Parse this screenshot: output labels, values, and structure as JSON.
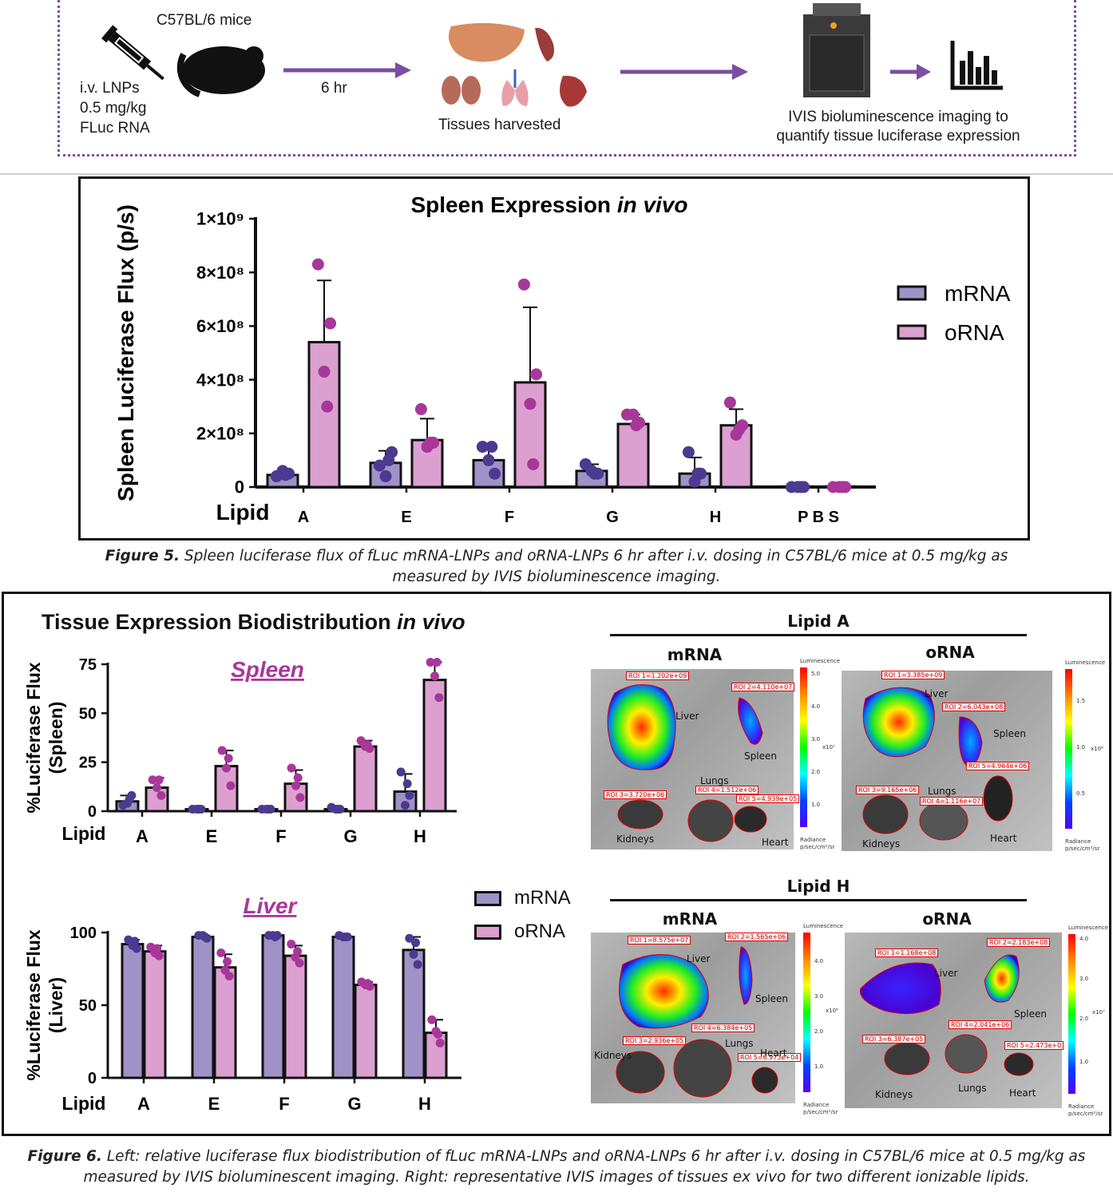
{
  "workflow": {
    "mouse_label": "C57BL/6 mice",
    "dose_lines": [
      "i.v. LNPs",
      "0.5 mg/kg",
      "FLuc RNA"
    ],
    "time_label": "6 hr",
    "harvest_label": "Tissues harvested",
    "imaging_lines": [
      "IVIS bioluminescence imaging to",
      "quantify tissue luciferase expression"
    ]
  },
  "figure5": {
    "caption_bold": "Figure 5.",
    "caption_text": " Spleen luciferase flux of fLuc mRNA-LNPs and oRNA-LNPs 6 hr after i.v. dosing in C57BL/6 mice at 0.5 mg/kg as measured by IVIS bioluminescence imaging."
  },
  "figure6": {
    "caption_bold": "Figure 6.",
    "caption_text": " Left: relative luciferase flux biodistribution of fLuc mRNA-LNPs and oRNA-LNPs 6 hr after i.v. dosing in C57BL/6 mice at 0.5 mg/kg as measured by IVIS bioluminescent imaging. Right: representative IVIS images of tissues ex vivo for two different ionizable lipids.",
    "left_title": "Tissue Expression Biodistribution",
    "left_title_italic": "in vivo",
    "legend": [
      "mRNA",
      "oRNA"
    ]
  },
  "ivis": {
    "panels": [
      {
        "lipid": "Lipid A",
        "mrna": "mRNA",
        "orna": "oRNA"
      },
      {
        "lipid": "Lipid H",
        "mrna": "mRNA",
        "orna": "oRNA"
      }
    ],
    "colorbar_title": "Luminescence",
    "colorbar_units": [
      "Radiance",
      "p/sec/cm²/sr"
    ],
    "a_mrna": {
      "roi": [
        "ROI 1=1.202e+09",
        "ROI 2=4.110e+07",
        "ROI 3=3.720e+06",
        "ROI 4=1.512e+06",
        "ROI 5=4.939e+05"
      ],
      "organs": [
        "Liver",
        "Spleen",
        "Lungs",
        "Kidneys",
        "Heart"
      ],
      "ticks": [
        "5.0",
        "4.0",
        "3.0",
        "2.0",
        "1.0"
      ],
      "scale": "x10⁷"
    },
    "a_orna": {
      "roi": [
        "ROI 1=3.385e+09",
        "ROI 2=6.043e+08",
        "ROI 3=9.165e+06",
        "ROI 4=1.116e+07",
        "ROI 5=4.964e+06"
      ],
      "organs": [
        "Liver",
        "Spleen",
        "Lungs",
        "Kidneys",
        "Heart"
      ],
      "ticks": [
        "1.5",
        "1.0",
        "0.5"
      ],
      "scale": "x10⁸"
    },
    "h_mrna": {
      "roi": [
        "ROI 1=8.575e+07",
        "ROI 2=1.565e+06",
        "ROI 3=2.936e+05",
        "ROI 4=6.384e+05",
        "ROI 5=6.973e+04"
      ],
      "organs": [
        "Liver",
        "Spleen",
        "Lungs",
        "Kidneys",
        "Heart"
      ],
      "ticks": [
        "4.0",
        "3.0",
        "2.0",
        "1.0"
      ],
      "scale": "x10⁶"
    },
    "h_orna": {
      "roi": [
        "ROI 1=1.168e+08",
        "ROI 2=2.183e+08",
        "ROI 3=6.387e+05",
        "ROI 4=2.041e+06",
        "ROI 5=2.473e+0"
      ],
      "organs": [
        "Liver",
        "Spleen",
        "Lungs",
        "Kidneys",
        "Heart"
      ],
      "ticks": [
        "4.0",
        "3.0",
        "2.0",
        "1.0"
      ],
      "scale": "x10⁷"
    }
  },
  "chart_data": [
    {
      "type": "bar",
      "title": "Spleen Expression in vivo",
      "xlabel": "Lipid",
      "ylabel": "Spleen Luciferase Flux (p/s)",
      "categories": [
        "A",
        "E",
        "F",
        "G",
        "H",
        "P B S"
      ],
      "yticks": [
        "0",
        "2×10⁸",
        "4×10⁸",
        "6×10⁸",
        "8×10⁸",
        "1×10⁹"
      ],
      "ylim": [
        0,
        1000000000
      ],
      "legend": "right",
      "colors": {
        "mRNA": "#9e92c7",
        "oRNA": "#dca0d0",
        "mRNA_dot": "#4b3a8f",
        "oRNA_dot": "#a8379a"
      },
      "series": [
        {
          "name": "mRNA",
          "values": [
            45000000,
            90000000,
            100000000,
            60000000,
            50000000,
            2000000
          ],
          "error": [
            10000000,
            45000000,
            60000000,
            25000000,
            60000000,
            0
          ],
          "points": [
            [
              40000000,
              50000000,
              60000000,
              45000000
            ],
            [
              80000000,
              130000000,
              40000000,
              100000000
            ],
            [
              150000000,
              50000000,
              100000000,
              150000000
            ],
            [
              85000000,
              50000000,
              60000000,
              50000000
            ],
            [
              130000000,
              50000000,
              20000000,
              50000000
            ],
            [
              0,
              0,
              0,
              0
            ]
          ]
        },
        {
          "name": "oRNA",
          "values": [
            540000000,
            175000000,
            390000000,
            235000000,
            230000000,
            2000000
          ],
          "error": [
            230000000,
            80000000,
            280000000,
            35000000,
            60000000,
            0
          ],
          "points": [
            [
              830000000,
              610000000,
              430000000,
              300000000
            ],
            [
              290000000,
              165000000,
              150000000,
              165000000
            ],
            [
              755000000,
              420000000,
              310000000,
              85000000
            ],
            [
              270000000,
              240000000,
              270000000,
              230000000
            ],
            [
              315000000,
              230000000,
              195000000,
              215000000
            ],
            [
              0,
              0,
              0,
              0
            ]
          ]
        }
      ]
    },
    {
      "type": "bar",
      "title": "Spleen",
      "xlabel": "Lipid",
      "ylabel": "%Luciferase Flux (Spleen)",
      "categories": [
        "A",
        "E",
        "F",
        "G",
        "H"
      ],
      "yticks": [
        "0",
        "25",
        "50",
        "75"
      ],
      "ylim": [
        0,
        75
      ],
      "series": [
        {
          "name": "mRNA",
          "values": [
            5,
            1,
            1,
            1,
            10
          ],
          "error": [
            3,
            0,
            0,
            0,
            9
          ],
          "points": [
            [
              3,
              8,
              4,
              6
            ],
            [
              1,
              1,
              1,
              1
            ],
            [
              1,
              1,
              1,
              1
            ],
            [
              2,
              1,
              1,
              1
            ],
            [
              20,
              8,
              3,
              14
            ]
          ]
        },
        {
          "name": "oRNA",
          "values": [
            12,
            23,
            14,
            33,
            67
          ],
          "error": [
            5,
            8,
            7,
            3,
            9
          ],
          "points": [
            [
              16,
              8,
              12,
              16
            ],
            [
              31,
              13,
              22,
              27
            ],
            [
              22,
              7,
              13,
              17
            ],
            [
              36,
              32,
              33,
              34
            ],
            [
              76,
              58,
              69,
              76
            ]
          ]
        }
      ]
    },
    {
      "type": "bar",
      "title": "Liver",
      "xlabel": "Lipid",
      "ylabel": "%Luciferase Flux (Liver)",
      "categories": [
        "A",
        "E",
        "F",
        "G",
        "H"
      ],
      "yticks": [
        "0",
        "50",
        "100"
      ],
      "ylim": [
        0,
        100
      ],
      "series": [
        {
          "name": "mRNA",
          "values": [
            92,
            97,
            98,
            97,
            88
          ],
          "error": [
            3,
            1,
            1,
            1,
            9
          ],
          "points": [
            [
              95,
              89,
              91,
              94
            ],
            [
              98,
              96,
              98,
              97
            ],
            [
              98,
              98,
              98,
              97
            ],
            [
              98,
              97,
              97,
              97
            ],
            [
              96,
              78,
              85,
              93
            ]
          ]
        },
        {
          "name": "oRNA",
          "values": [
            87,
            76,
            84,
            64,
            31
          ],
          "error": [
            4,
            9,
            7,
            2,
            9
          ],
          "points": [
            [
              90,
              84,
              86,
              89
            ],
            [
              86,
              70,
              74,
              80
            ],
            [
              92,
              79,
              83,
              87
            ],
            [
              66,
              63,
              64,
              65
            ],
            [
              40,
              24,
              32,
              30
            ]
          ]
        }
      ]
    }
  ]
}
